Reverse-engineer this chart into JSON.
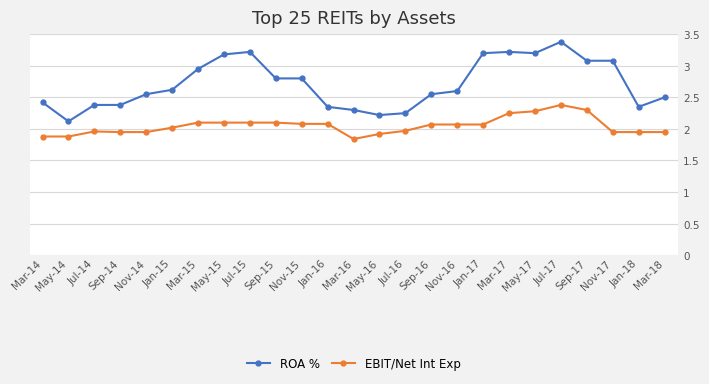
{
  "title": "Top 25 REITs by Assets",
  "x_labels": [
    "Mar-14",
    "May-14",
    "Jul-14",
    "Sep-14",
    "Nov-14",
    "Jan-15",
    "Mar-15",
    "May-15",
    "Jul-15",
    "Sep-15",
    "Nov-15",
    "Jan-16",
    "Mar-16",
    "May-16",
    "Jul-16",
    "Sep-16",
    "Nov-16",
    "Jan-17",
    "Mar-17",
    "May-17",
    "Jul-17",
    "Sep-17",
    "Nov-17",
    "Jan-18",
    "Mar-18"
  ],
  "roa": [
    2.42,
    2.12,
    2.38,
    2.38,
    2.55,
    2.62,
    2.95,
    3.18,
    3.22,
    2.8,
    2.8,
    2.35,
    2.3,
    2.22,
    2.25,
    2.55,
    2.6,
    3.2,
    3.22,
    3.2,
    3.38,
    3.08,
    3.08,
    2.35,
    2.5
  ],
  "ebit": [
    1.88,
    1.88,
    1.96,
    1.95,
    1.95,
    2.02,
    2.1,
    2.1,
    2.1,
    2.1,
    2.08,
    2.08,
    1.84,
    1.92,
    1.97,
    2.07,
    2.07,
    2.07,
    2.25,
    2.28,
    2.38,
    2.3,
    1.95,
    1.95,
    1.95
  ],
  "roa_color": "#4472C4",
  "ebit_color": "#ED7D31",
  "roa_label": "ROA %",
  "ebit_label": "EBIT/Net Int Exp",
  "y_min": 0,
  "y_max": 3.5,
  "y_ticks": [
    0,
    0.5,
    1,
    1.5,
    2,
    2.5,
    3,
    3.5
  ],
  "background_color": "#F2F2F2",
  "plot_background_color": "#FFFFFF",
  "grid_color": "#D9D9D9",
  "title_fontsize": 13,
  "tick_fontsize": 7.5,
  "legend_fontsize": 8.5
}
